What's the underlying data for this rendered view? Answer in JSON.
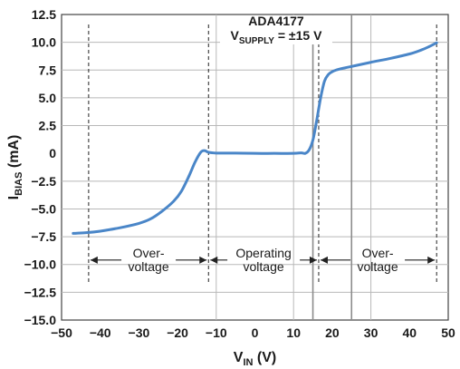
{
  "chart_data": {
    "type": "line",
    "title_line1": "ADA4177",
    "title_line2_main": "V",
    "title_line2_sub": "SUPPLY",
    "title_line2_rest": " = ±15 V",
    "xlabel_main": "V",
    "xlabel_sub": "IN",
    "xlabel_rest": " (V)",
    "ylabel_main": "I",
    "ylabel_sub": "BIAS",
    "ylabel_rest": " (mA)",
    "xlim": [
      -50,
      50
    ],
    "ylim": [
      -15,
      12.5
    ],
    "x_ticks": [
      -50,
      -40,
      -30,
      -20,
      -10,
      0,
      10,
      20,
      30,
      40,
      50
    ],
    "y_ticks": [
      "12.5",
      "10.0",
      "7.5",
      "5.0",
      "2.5",
      "0",
      "−2.5",
      "−5.0",
      "−7.5",
      "−10.0",
      "−12.5",
      "−15.0"
    ],
    "y_tick_values": [
      12.5,
      10,
      7.5,
      5,
      2.5,
      0,
      -2.5,
      -5,
      -7.5,
      -10,
      -12.5,
      -15
    ],
    "grid_x": [
      -10,
      10,
      30
    ],
    "grid_y": [
      10,
      7.5,
      5,
      2.5,
      -2.5,
      -5,
      -7.5,
      -10,
      -12.5
    ],
    "solid_verticals": [
      15,
      25
    ],
    "dashed_verticals": [
      -43,
      -12,
      16.5,
      47
    ],
    "series": [
      {
        "color": "#4a86c8",
        "x": [
          -47,
          -44,
          -40,
          -35,
          -30,
          -27,
          -24,
          -21,
          -19,
          -17,
          -15.5,
          -14,
          -13,
          -12,
          -10,
          -5,
          0,
          5,
          10,
          12,
          13,
          14,
          15,
          16,
          17,
          18,
          19,
          20,
          21,
          22,
          24,
          26,
          30,
          35,
          40,
          43,
          45,
          47
        ],
        "y": [
          -7.2,
          -7.15,
          -7.0,
          -6.7,
          -6.3,
          -5.9,
          -5.2,
          -4.3,
          -3.4,
          -2.0,
          -0.8,
          0.1,
          0.25,
          0.1,
          0.03,
          0.02,
          0.0,
          0.0,
          0.0,
          0.05,
          0.0,
          0.3,
          1.2,
          3.0,
          5.0,
          6.5,
          7.1,
          7.35,
          7.5,
          7.6,
          7.75,
          7.9,
          8.2,
          8.55,
          8.95,
          9.3,
          9.6,
          9.95
        ]
      }
    ],
    "regions": [
      {
        "from": -43,
        "to": -12,
        "label_line1": "Over-",
        "label_line2": "voltage"
      },
      {
        "from": -12,
        "to": 16.5,
        "label_line1": "Operating",
        "label_line2": "voltage"
      },
      {
        "from": 16.5,
        "to": 47,
        "label_line1": "Over-",
        "label_line2": "voltage"
      }
    ],
    "region_arrow_y": -9.6
  }
}
